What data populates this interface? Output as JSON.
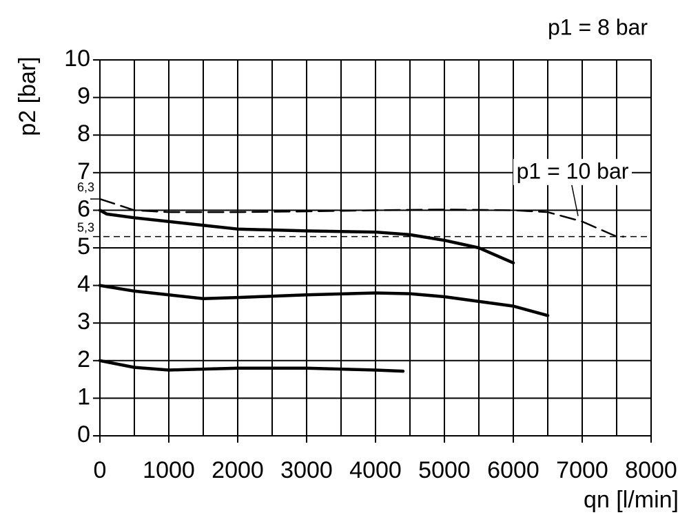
{
  "chart_data": {
    "type": "line",
    "title": "p1 = 8 bar",
    "y_label": "p2 [bar]",
    "x_label": "qn [l/min]",
    "xlim": [
      0,
      8000
    ],
    "ylim": [
      0,
      10
    ],
    "xticks": [
      0,
      1000,
      2000,
      3000,
      4000,
      5000,
      6000,
      7000,
      8000
    ],
    "x_minor_grid": [
      500,
      1500,
      2500,
      3500,
      4500,
      5500,
      6500,
      7500
    ],
    "yticks": [
      0,
      1,
      2,
      3,
      4,
      5,
      6,
      7,
      8,
      9,
      10
    ],
    "grid": true,
    "reference_line": {
      "value": 5.3,
      "label": "5,3"
    },
    "marked_value": {
      "value": 6.3,
      "label": "6,3"
    },
    "series": [
      {
        "color": "#000000",
        "dashed": false,
        "x": [
          0,
          100,
          500,
          1000,
          1500,
          2000,
          3000,
          4000,
          4500,
          5000,
          5500,
          6000
        ],
        "values": [
          6.0,
          5.9,
          5.8,
          5.7,
          5.6,
          5.5,
          5.45,
          5.42,
          5.35,
          5.2,
          5.0,
          4.6
        ]
      },
      {
        "color": "#000000",
        "dashed": false,
        "x": [
          0,
          500,
          1000,
          1500,
          2000,
          3000,
          4000,
          4500,
          5000,
          6000,
          6500
        ],
        "values": [
          4.0,
          3.85,
          3.75,
          3.65,
          3.68,
          3.75,
          3.8,
          3.78,
          3.7,
          3.45,
          3.2
        ]
      },
      {
        "color": "#000000",
        "dashed": false,
        "x": [
          0,
          500,
          1000,
          2000,
          3000,
          4000,
          4400
        ],
        "values": [
          2.0,
          1.82,
          1.75,
          1.8,
          1.8,
          1.75,
          1.72
        ]
      },
      {
        "name": "p1 = 10 bar",
        "color": "#000000",
        "dashed": true,
        "x": [
          0,
          500,
          1000,
          2000,
          3000,
          4000,
          5000,
          6000,
          6500,
          7000,
          7500,
          7600
        ],
        "values": [
          6.3,
          6.0,
          5.95,
          5.95,
          5.97,
          6.0,
          6.02,
          6.0,
          5.95,
          5.7,
          5.3,
          5.3
        ]
      }
    ]
  }
}
